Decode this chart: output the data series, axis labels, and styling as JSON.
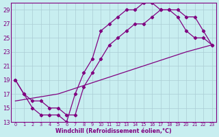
{
  "xlabel": "Windchill (Refroidissement éolien,°C)",
  "bg_color": "#c8eef0",
  "line_color": "#800080",
  "grid_color": "#aaccd4",
  "xlim_min": -0.5,
  "xlim_max": 23.5,
  "ylim_min": 13,
  "ylim_max": 30,
  "xticks": [
    0,
    1,
    2,
    3,
    4,
    5,
    6,
    7,
    8,
    9,
    10,
    11,
    12,
    13,
    14,
    15,
    16,
    17,
    18,
    19,
    20,
    21,
    22,
    23
  ],
  "yticks": [
    13,
    15,
    17,
    19,
    21,
    23,
    25,
    27,
    29
  ],
  "curve1_x": [
    0,
    1,
    2,
    3,
    4,
    5,
    6,
    7,
    8,
    9,
    10,
    11,
    12,
    13,
    14,
    15,
    16,
    17,
    18,
    19,
    20,
    21,
    22,
    23
  ],
  "curve1_y": [
    19,
    17,
    15,
    14,
    14,
    14,
    13,
    17,
    20,
    22,
    26,
    27,
    28,
    29,
    29,
    30,
    30,
    29,
    29,
    28,
    26,
    25,
    25,
    24
  ],
  "curve2_x": [
    0,
    1,
    2,
    3,
    4,
    5,
    6,
    7,
    8,
    9,
    10,
    11,
    12,
    13,
    14,
    15,
    16,
    17,
    18,
    19,
    20,
    21,
    22,
    23
  ],
  "curve2_y": [
    19,
    17,
    16,
    16,
    15,
    15,
    14,
    14,
    18,
    20,
    22,
    24,
    25,
    26,
    27,
    27,
    28,
    29,
    29,
    29,
    28,
    28,
    26,
    24
  ],
  "line3_x": [
    0,
    5,
    10,
    15,
    20,
    23
  ],
  "line3_y": [
    16,
    17,
    19,
    21,
    23,
    24
  ]
}
